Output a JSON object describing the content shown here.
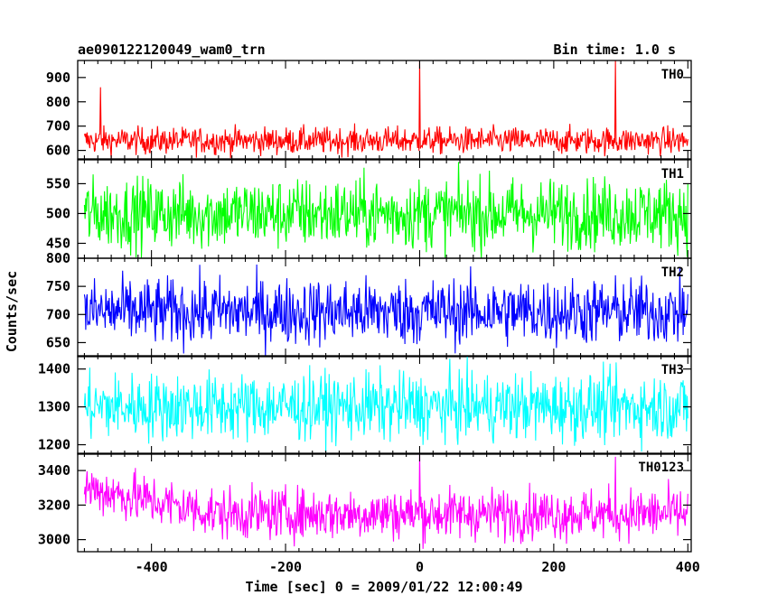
{
  "chart_data": {
    "type": "line",
    "title": "ae090122120049_wam0_trn",
    "bin_time": "Bin time: 1.0 s",
    "xlabel": "Time [sec] 0 = 2009/01/22 12:00:49",
    "ylabel": "Counts/sec",
    "xlim": [
      -510,
      405
    ],
    "xticks": [
      "-400",
      "-200",
      "0",
      "200",
      "400"
    ],
    "xtick_values": [
      -400,
      -200,
      0,
      200,
      400
    ],
    "grid": false,
    "panels": [
      {
        "name": "TH0",
        "color": "#ff0000",
        "ylim": [
          565,
          970
        ],
        "yticks": [
          "600",
          "700",
          "800",
          "900"
        ],
        "ytick_values": [
          600,
          700,
          800,
          900
        ],
        "mean": 640,
        "noise_amplitude": 28,
        "x_start": -500,
        "x_end": 400,
        "spikes": [
          {
            "x": -476,
            "y": 860
          },
          {
            "x": 0,
            "y": 970
          },
          {
            "x": 292,
            "y": 970
          }
        ]
      },
      {
        "name": "TH1",
        "color": "#00ff00",
        "ylim": [
          425,
          590
        ],
        "yticks": [
          "450",
          "500",
          "550"
        ],
        "ytick_values": [
          450,
          500,
          550
        ],
        "mean": 500,
        "noise_amplitude": 30,
        "x_start": -500,
        "x_end": 400,
        "spikes": []
      },
      {
        "name": "TH2",
        "color": "#0000ff",
        "ylim": [
          625,
          800
        ],
        "yticks": [
          "650",
          "700",
          "750",
          "800"
        ],
        "ytick_values": [
          650,
          700,
          750,
          800
        ],
        "mean": 705,
        "noise_amplitude": 30,
        "x_start": -500,
        "x_end": 400,
        "spikes": []
      },
      {
        "name": "TH3",
        "color": "#00ffff",
        "ylim": [
          1175,
          1435
        ],
        "yticks": [
          "1200",
          "1300",
          "1400"
        ],
        "ytick_values": [
          1200,
          1300,
          1400
        ],
        "mean": 1300,
        "noise_amplitude": 45,
        "x_start": -500,
        "x_end": 400,
        "spikes": []
      },
      {
        "name": "TH0123",
        "color": "#ff00ff",
        "ylim": [
          2930,
          3500
        ],
        "yticks": [
          "3000",
          "3200",
          "3400"
        ],
        "ytick_values": [
          3000,
          3200,
          3400
        ],
        "mean": 3150,
        "noise_amplitude": 75,
        "x_start": -500,
        "x_end": 400,
        "trend_start": 3300,
        "trend_decay_to": -300,
        "spikes": [
          {
            "x": 0,
            "y": 3500
          },
          {
            "x": 292,
            "y": 3480
          }
        ]
      }
    ]
  }
}
